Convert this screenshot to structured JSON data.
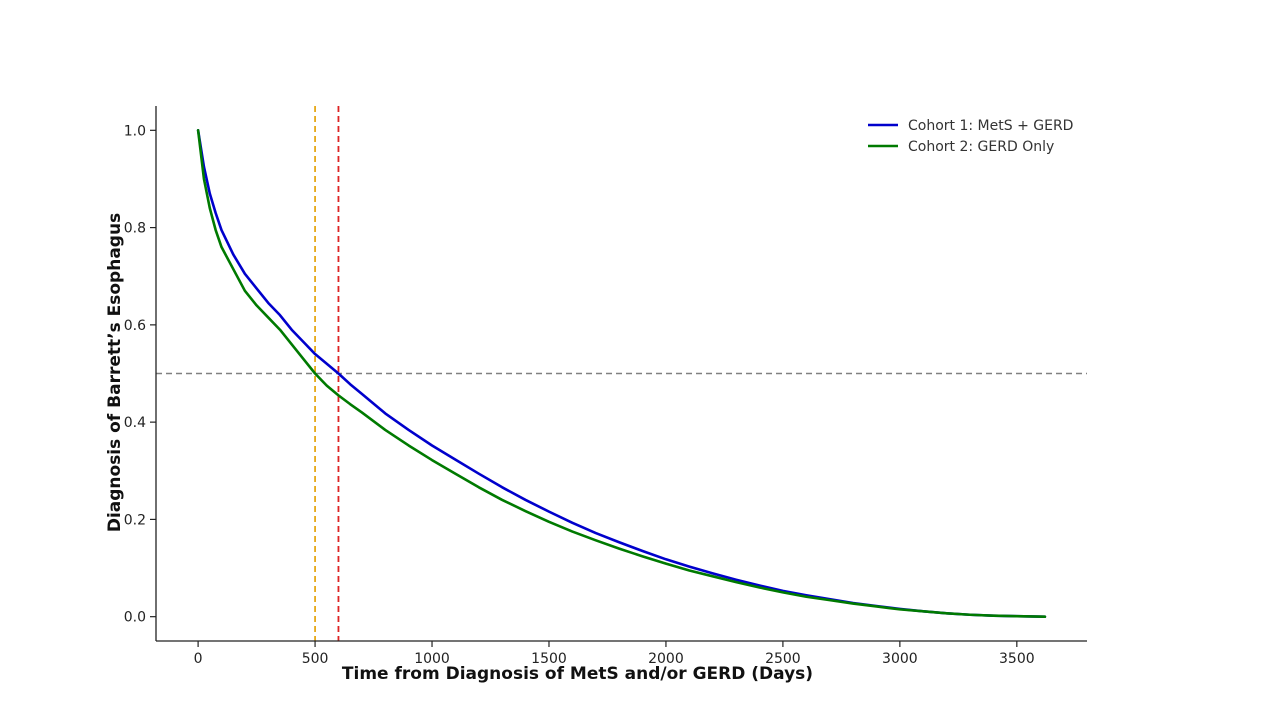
{
  "chart_data": {
    "type": "line",
    "title": "",
    "xlabel": "Time from Diagnosis of MetS and/or GERD (Days)",
    "ylabel": "Diagnosis of Barrett’s Esophagus",
    "xlim": [
      -180,
      3800
    ],
    "ylim": [
      -0.05,
      1.05
    ],
    "x_ticks": [
      0,
      500,
      1000,
      1500,
      2000,
      2500,
      3000,
      3500
    ],
    "x_tick_labels": [
      "0",
      "500",
      "1000",
      "1500",
      "2000",
      "2500",
      "3000",
      "3500"
    ],
    "y_ticks": [
      0.0,
      0.2,
      0.4,
      0.6,
      0.8,
      1.0
    ],
    "y_tick_labels": [
      "0.0",
      "0.2",
      "0.4",
      "0.6",
      "0.8",
      "1.0"
    ],
    "grid": false,
    "legend_position": "top-right",
    "series": [
      {
        "name": "Cohort 1: MetS + GERD",
        "color": "#0000cc",
        "x": [
          0,
          25,
          50,
          75,
          100,
          150,
          200,
          250,
          300,
          350,
          400,
          450,
          500,
          550,
          600,
          650,
          700,
          800,
          900,
          1000,
          1100,
          1200,
          1300,
          1400,
          1500,
          1600,
          1700,
          1800,
          1900,
          2000,
          2100,
          2200,
          2300,
          2400,
          2500,
          2600,
          2700,
          2800,
          2900,
          3000,
          3100,
          3200,
          3300,
          3400,
          3500,
          3620
        ],
        "y": [
          1.0,
          0.925,
          0.87,
          0.83,
          0.795,
          0.745,
          0.705,
          0.675,
          0.645,
          0.62,
          0.59,
          0.565,
          0.54,
          0.52,
          0.5,
          0.478,
          0.458,
          0.418,
          0.384,
          0.352,
          0.323,
          0.294,
          0.266,
          0.24,
          0.216,
          0.193,
          0.172,
          0.153,
          0.135,
          0.118,
          0.103,
          0.089,
          0.076,
          0.064,
          0.053,
          0.044,
          0.036,
          0.028,
          0.022,
          0.016,
          0.011,
          0.007,
          0.004,
          0.002,
          0.001,
          0.0
        ]
      },
      {
        "name": "Cohort 2: GERD Only",
        "color": "#007a00",
        "x": [
          0,
          25,
          50,
          75,
          100,
          150,
          200,
          250,
          300,
          350,
          400,
          450,
          500,
          550,
          600,
          650,
          700,
          800,
          900,
          1000,
          1100,
          1200,
          1300,
          1400,
          1500,
          1600,
          1700,
          1800,
          1900,
          2000,
          2100,
          2200,
          2300,
          2400,
          2500,
          2600,
          2700,
          2800,
          2900,
          3000,
          3100,
          3200,
          3300,
          3400,
          3500,
          3620
        ],
        "y": [
          1.0,
          0.9,
          0.84,
          0.795,
          0.76,
          0.715,
          0.67,
          0.64,
          0.615,
          0.59,
          0.56,
          0.53,
          0.5,
          0.475,
          0.455,
          0.437,
          0.42,
          0.384,
          0.352,
          0.322,
          0.294,
          0.266,
          0.24,
          0.217,
          0.195,
          0.175,
          0.157,
          0.14,
          0.124,
          0.109,
          0.095,
          0.083,
          0.071,
          0.06,
          0.05,
          0.041,
          0.034,
          0.027,
          0.021,
          0.015,
          0.011,
          0.007,
          0.004,
          0.002,
          0.001,
          0.0
        ]
      }
    ],
    "reference_lines": [
      {
        "orientation": "horizontal",
        "value": 0.5,
        "color": "#808080"
      },
      {
        "orientation": "vertical",
        "value": 500,
        "color": "#e6a817"
      },
      {
        "orientation": "vertical",
        "value": 600,
        "color": "#dd2222"
      }
    ]
  }
}
